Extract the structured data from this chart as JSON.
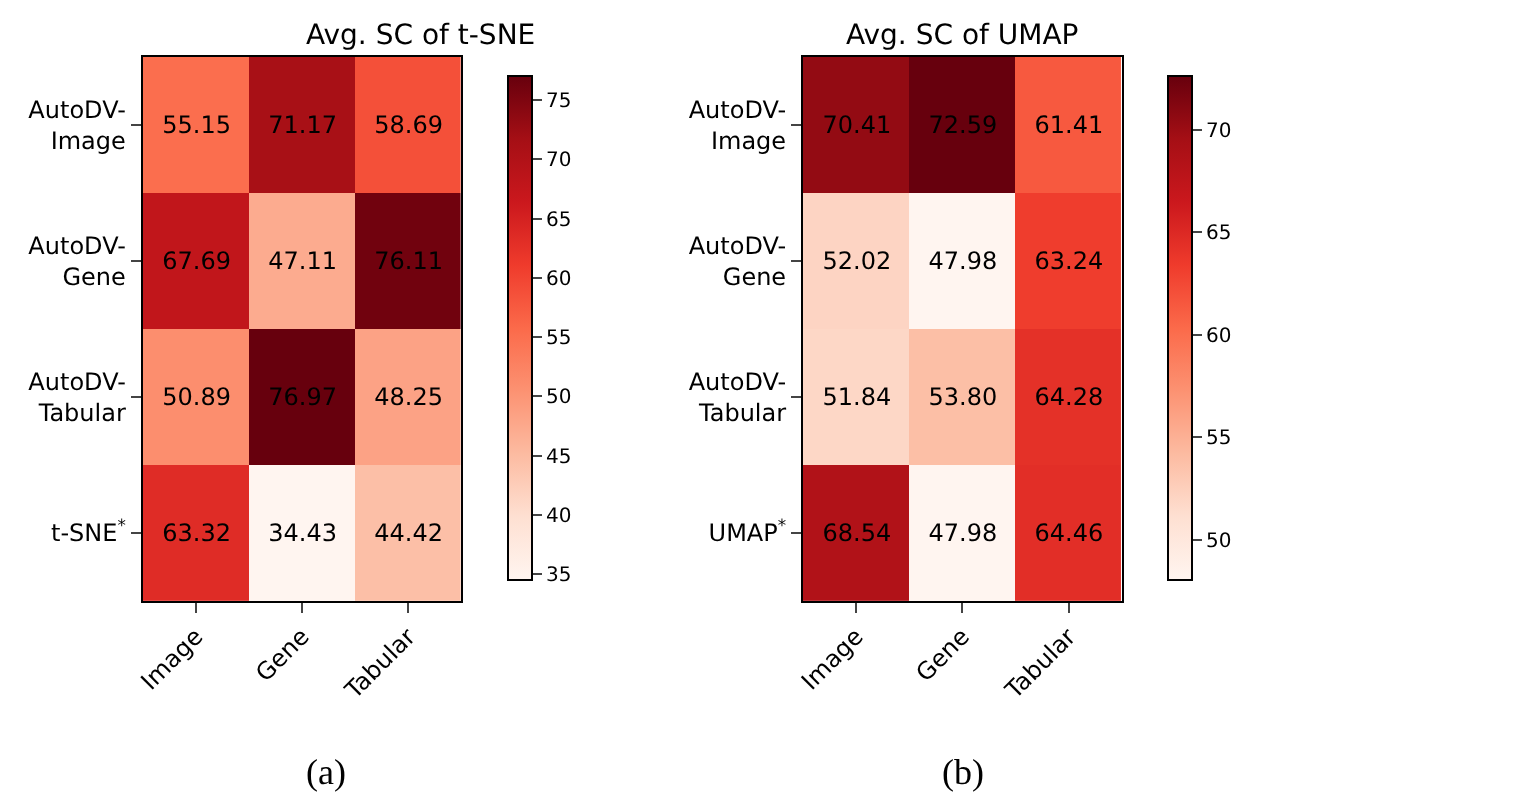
{
  "chart_data": [
    {
      "type": "heatmap",
      "title": "Avg. SC of t-SNE",
      "categories": [
        "Image",
        "Gene",
        "Tabular"
      ],
      "y_categories": [
        "AutoDV-Image",
        "AutoDV-Gene",
        "AutoDV-Tabular",
        "t-SNE$^{*}$"
      ],
      "cells": [
        [
          55.15,
          71.17,
          58.69
        ],
        [
          67.69,
          47.11,
          76.11
        ],
        [
          50.89,
          76.97,
          48.25
        ],
        [
          63.32,
          34.43,
          44.42
        ]
      ],
      "clim": [
        34.43,
        76.97
      ],
      "cticks": [
        35,
        40,
        45,
        50,
        55,
        60,
        65,
        70,
        75
      ],
      "data_labels": true,
      "annotations": [
        "(a)"
      ]
    },
    {
      "type": "heatmap",
      "title": "Avg. SC of UMAP",
      "categories": [
        "Image",
        "Gene",
        "Tabular"
      ],
      "y_categories": [
        "AutoDV-Image",
        "AutoDV-Gene",
        "AutoDV-Tabular",
        "UMAP$^{*}$"
      ],
      "cells": [
        [
          70.41,
          72.59,
          61.41
        ],
        [
          52.02,
          47.98,
          63.24
        ],
        [
          51.84,
          53.8,
          64.28
        ],
        [
          68.54,
          47.98,
          64.46
        ]
      ],
      "cell_labels": [
        [
          "70.41",
          "72.59",
          "61.41"
        ],
        [
          "52.02",
          "47.98",
          "63.24"
        ],
        [
          "51.84",
          "53.80",
          "64.28"
        ],
        [
          "68.54",
          "47.98",
          "64.46"
        ]
      ],
      "clim": [
        47.98,
        72.59
      ],
      "cticks": [
        50,
        55,
        60,
        65,
        70
      ],
      "annotations": [
        "(b)"
      ]
    }
  ]
}
